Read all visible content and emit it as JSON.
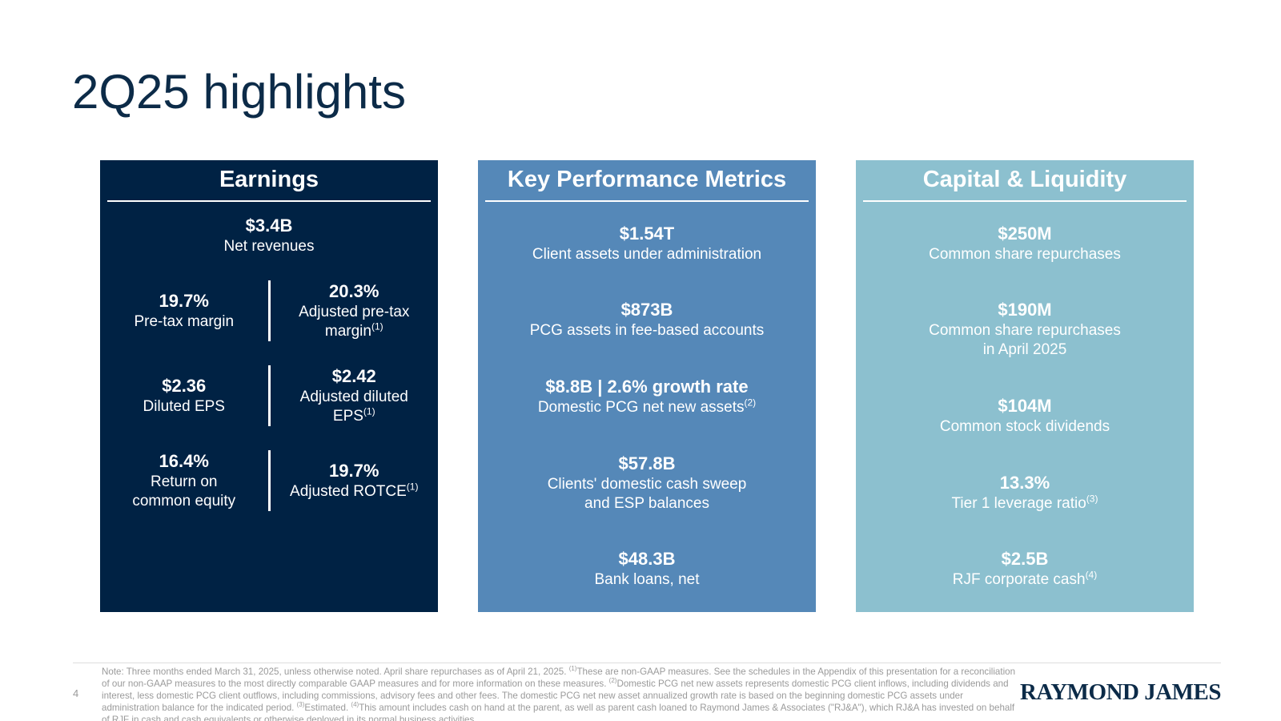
{
  "title": "2Q25 highlights",
  "panels": [
    {
      "title": "Earnings",
      "items": [
        {
          "value": "$3.4B",
          "label": [
            "Net revenues"
          ]
        }
      ],
      "pairs": [
        [
          {
            "value": "19.7%",
            "label": [
              "Pre-tax margin"
            ]
          },
          {
            "value": "20.3%",
            "label": [
              "Adjusted pre-tax",
              "margin"
            ],
            "sup": "(1)"
          }
        ],
        [
          {
            "value": "$2.36",
            "label": [
              "Diluted EPS"
            ]
          },
          {
            "value": "$2.42",
            "label": [
              "Adjusted diluted",
              "EPS"
            ],
            "sup": "(1)"
          }
        ],
        [
          {
            "value": "16.4%",
            "label": [
              "Return on",
              "common equity"
            ]
          },
          {
            "value": "19.7%",
            "label": [
              "Adjusted ROTCE"
            ],
            "sup": "(1)"
          }
        ]
      ]
    },
    {
      "title": "Key Performance Metrics",
      "items": [
        {
          "value": "$1.54T",
          "label": [
            "Client assets under administration"
          ]
        },
        {
          "value": "$873B",
          "label": [
            "PCG assets in fee-based accounts"
          ]
        },
        {
          "value": "$8.8B | 2.6% growth rate",
          "label": [
            "Domestic PCG net new assets"
          ],
          "sup": "(2)"
        },
        {
          "value": "$57.8B",
          "label": [
            "Clients' domestic cash sweep",
            "and ESP balances"
          ]
        },
        {
          "value": "$48.3B",
          "label": [
            "Bank loans, net"
          ]
        }
      ]
    },
    {
      "title": "Capital & Liquidity",
      "items": [
        {
          "value": "$250M",
          "label": [
            "Common share repurchases"
          ]
        },
        {
          "value": "$190M",
          "label": [
            "Common share repurchases",
            "in April 2025"
          ]
        },
        {
          "value": "$104M",
          "label": [
            "Common stock dividends"
          ]
        },
        {
          "value": "13.3%",
          "label": [
            "Tier 1 leverage ratio"
          ],
          "sup": "(3)"
        },
        {
          "value": "$2.5B",
          "label": [
            "RJF corporate cash"
          ],
          "sup": "(4)"
        }
      ]
    }
  ],
  "footnote": [
    {
      "text": "Note: Three months ended March 31, 2025, unless otherwise noted. April share repurchases as of April 21, 2025. "
    },
    {
      "sup": "(1)"
    },
    {
      "text": "These are non-GAAP measures. See the schedules in the Appendix of this presentation for a reconciliation of our non-GAAP measures to the most directly comparable GAAP measures and for more information on these measures. "
    },
    {
      "sup": "(2)"
    },
    {
      "text": "Domestic PCG net new assets represents domestic PCG client inflows, including dividends and interest, less domestic PCG client outflows, including commissions, advisory fees and other fees. The domestic PCG net new asset annualized growth rate is based on the beginning domestic PCG assets under administration balance for the indicated period. "
    },
    {
      "sup": "(3)"
    },
    {
      "text": "Estimated. "
    },
    {
      "sup": "(4)"
    },
    {
      "text": "This amount includes cash on hand at the parent, as well as parent cash loaned to Raymond James & Associates (\"RJ&A\"), which RJ&A has invested on behalf of RJF in cash and cash equivalents or otherwise deployed in its normal business activities."
    }
  ],
  "page_number": "4",
  "logo": "RAYMOND JAMES"
}
